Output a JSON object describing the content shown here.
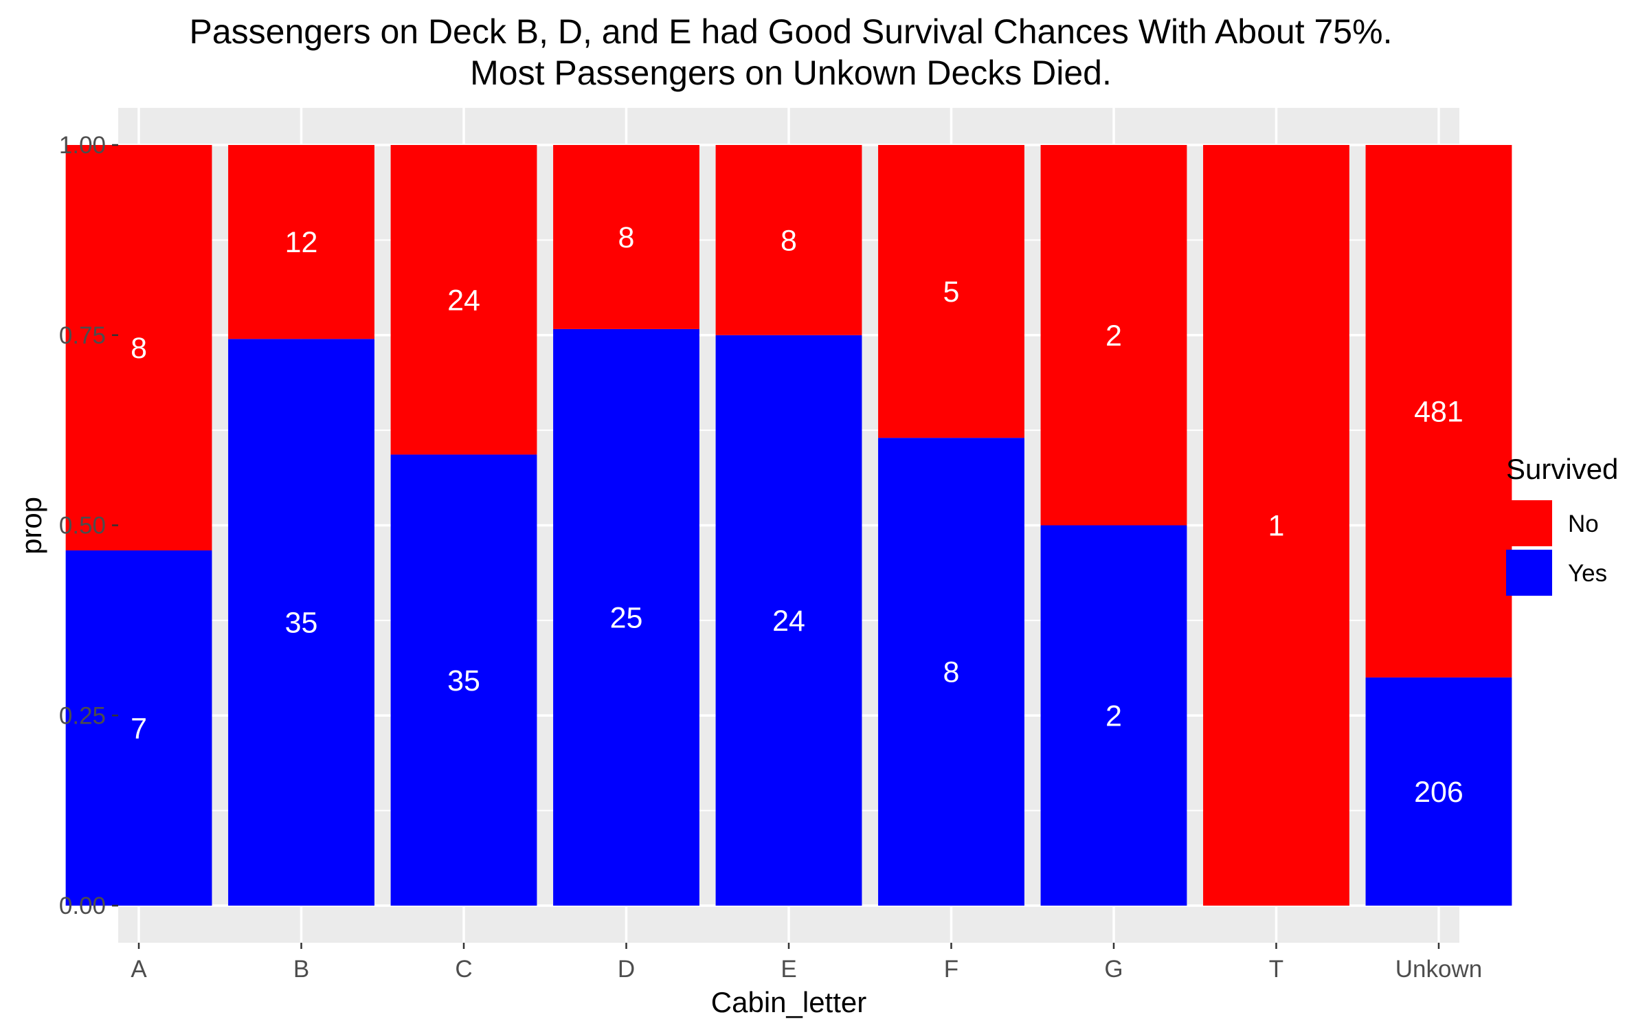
{
  "chart_data": {
    "type": "bar",
    "stacked": true,
    "normalized": true,
    "title": [
      "Passengers on Deck B, D, and E had Good Survival Chances With About 75%.",
      "Most Passengers on Unkown Decks Died."
    ],
    "xlabel": "Cabin_letter",
    "ylabel": "prop",
    "ylim": [
      0,
      1
    ],
    "yticks": [
      "0.00",
      "0.25",
      "0.50",
      "0.75",
      "1.00"
    ],
    "yticks_values": [
      0,
      0.25,
      0.5,
      0.75,
      1.0
    ],
    "grid": true,
    "categories": [
      "A",
      "B",
      "C",
      "D",
      "E",
      "F",
      "G",
      "T",
      "Unkown"
    ],
    "series": [
      {
        "name": "No",
        "color": "#ff0000",
        "counts": [
          8,
          12,
          24,
          8,
          8,
          5,
          2,
          1,
          481
        ],
        "values": [
          0.533,
          0.255,
          0.407,
          0.242,
          0.25,
          0.385,
          0.5,
          1.0,
          0.7
        ]
      },
      {
        "name": "Yes",
        "color": "#0000ff",
        "counts": [
          7,
          35,
          35,
          25,
          24,
          8,
          2,
          0,
          206
        ],
        "values": [
          0.467,
          0.745,
          0.593,
          0.758,
          0.75,
          0.615,
          0.5,
          0.0,
          0.3
        ]
      }
    ],
    "legend": {
      "title": "Survived",
      "position": "right",
      "entries": [
        "No",
        "Yes"
      ]
    }
  }
}
